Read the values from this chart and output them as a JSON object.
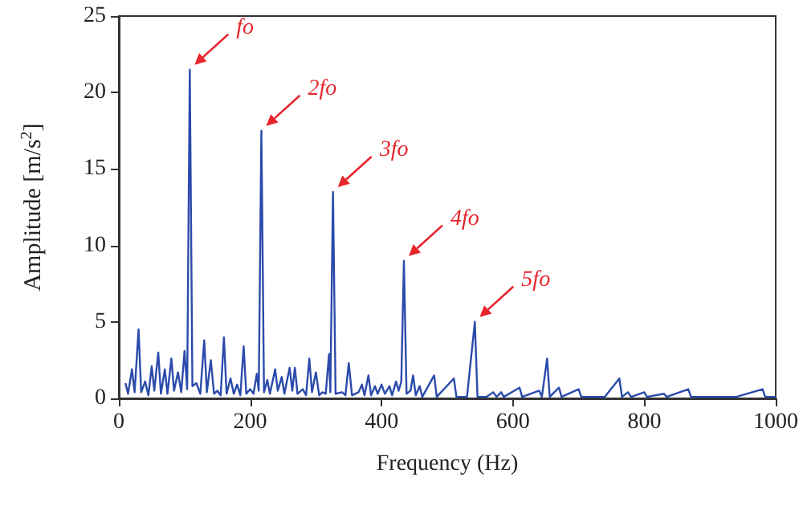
{
  "chart_data": {
    "type": "line",
    "xlabel": "Frequency (Hz)",
    "ylabel": "Amplitude [m/s$^{2}$]",
    "xlim": [
      0,
      1000
    ],
    "xticks": [
      0,
      200,
      400,
      600,
      800,
      1000
    ],
    "ylim": [
      0,
      25
    ],
    "yticks": [
      0,
      5,
      10,
      15,
      20,
      25
    ],
    "grid": false,
    "marker": "none",
    "line_style": "solid",
    "annotations": [
      {
        "text": "fo",
        "x": 108,
        "y": 21.5
      },
      {
        "text": "2fo",
        "x": 217,
        "y": 17.5
      },
      {
        "text": "3fo",
        "x": 326,
        "y": 13.5
      },
      {
        "text": "4fo",
        "x": 434,
        "y": 9
      },
      {
        "text": "5fo",
        "x": 542,
        "y": 5
      }
    ],
    "series": [
      {
        "color": "#2b4bab",
        "x": [
          10,
          14,
          20,
          24,
          30,
          34,
          40,
          45,
          50,
          54,
          60,
          64,
          70,
          74,
          80,
          84,
          90,
          95,
          100,
          104,
          108,
          112,
          118,
          124,
          130,
          134,
          140,
          145,
          150,
          155,
          160,
          164,
          170,
          175,
          180,
          185,
          190,
          194,
          200,
          205,
          210,
          213,
          217,
          221,
          226,
          230,
          238,
          242,
          248,
          252,
          260,
          264,
          268,
          272,
          280,
          285,
          290,
          294,
          300,
          305,
          310,
          315,
          320,
          322,
          326,
          330,
          340,
          345,
          350,
          355,
          365,
          370,
          374,
          380,
          384,
          390,
          394,
          400,
          405,
          412,
          416,
          422,
          426,
          430,
          434,
          438,
          444,
          448,
          452,
          458,
          462,
          480,
          484,
          510,
          514,
          530,
          542,
          546,
          560,
          570,
          575,
          582,
          586,
          610,
          614,
          640,
          644,
          652,
          656,
          670,
          674,
          700,
          704,
          740,
          762,
          766,
          775,
          780,
          800,
          804,
          830,
          834,
          867,
          871,
          940,
          980,
          984,
          1000
        ],
        "values": [
          1.0,
          0.3,
          1.9,
          0.4,
          4.5,
          0.4,
          1.1,
          0.2,
          2.1,
          0.5,
          3.0,
          0.3,
          1.9,
          0.3,
          2.6,
          0.5,
          1.7,
          0.4,
          3.1,
          0.6,
          21.5,
          0.8,
          1.0,
          0.3,
          3.8,
          0.4,
          2.5,
          0.3,
          0.5,
          0.2,
          4.0,
          0.3,
          1.3,
          0.3,
          0.9,
          0.2,
          3.4,
          0.3,
          0.6,
          0.3,
          1.6,
          0.5,
          17.5,
          0.4,
          1.2,
          0.3,
          1.9,
          0.5,
          1.4,
          0.3,
          2.0,
          0.5,
          2.0,
          0.3,
          0.6,
          0.2,
          2.6,
          0.4,
          1.7,
          0.2,
          0.4,
          0.3,
          2.9,
          0.4,
          13.5,
          0.3,
          0.4,
          0.2,
          2.3,
          0.2,
          0.4,
          0.9,
          0.2,
          1.5,
          0.2,
          0.8,
          0.3,
          0.9,
          0.3,
          0.8,
          0.2,
          1.1,
          0.5,
          1.1,
          9.0,
          0.3,
          0.5,
          1.5,
          0.2,
          0.8,
          0.1,
          1.5,
          0.1,
          1.3,
          0.1,
          0.1,
          5.0,
          0.1,
          0.1,
          0.4,
          0.1,
          0.4,
          0.1,
          0.7,
          0.1,
          0.5,
          0.1,
          2.6,
          0.1,
          0.7,
          0.1,
          0.6,
          0.1,
          0.1,
          1.3,
          0.1,
          0.4,
          0.1,
          0.4,
          0.1,
          0.3,
          0.1,
          0.6,
          0.1,
          0.1,
          0.6,
          0.1,
          0.1
        ]
      }
    ]
  }
}
